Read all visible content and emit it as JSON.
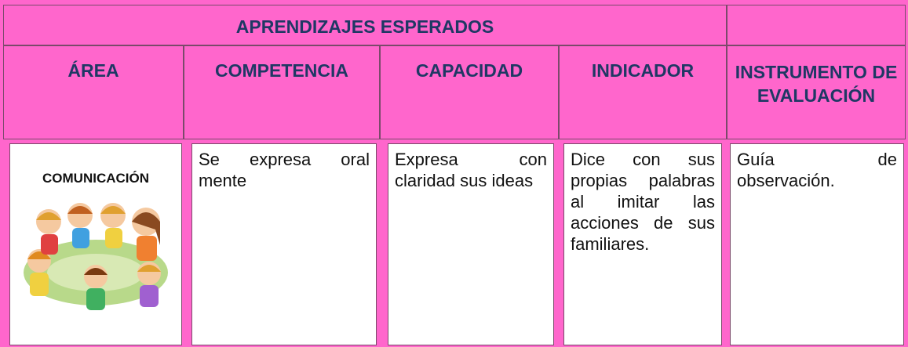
{
  "header": {
    "title": "APRENDIZAJES ESPERADOS"
  },
  "table": {
    "headers": [
      "ÁREA",
      "COMPETENCIA",
      "CAPACIDAD",
      "INDICADOR",
      "INSTRUMENTO DE EVALUACIÓN"
    ],
    "rows": [
      [
        "COMUNICACIÓN",
        "Se expresa oral mente",
        "Expresa con claridad sus ideas",
        "Dice con sus propias palabras al imitar las acciones de sus familiares.",
        "Guía de observación."
      ]
    ]
  }
}
